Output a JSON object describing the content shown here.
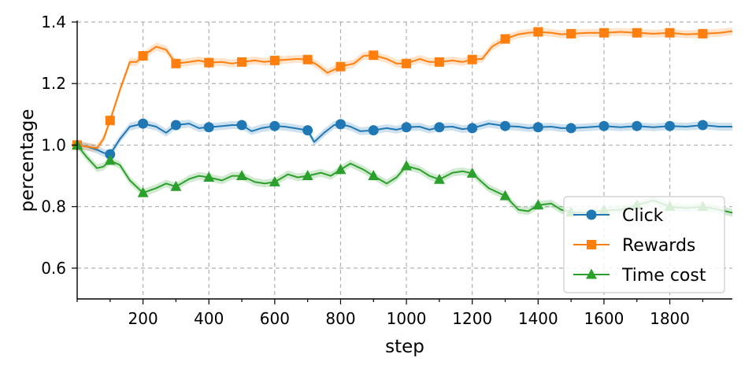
{
  "chart_data": {
    "type": "line",
    "xlabel": "step",
    "ylabel": "percentage",
    "xlim": [
      0,
      1990
    ],
    "ylim": [
      0.5,
      1.4
    ],
    "xticks": [
      200,
      400,
      600,
      800,
      1000,
      1200,
      1400,
      1600,
      1800
    ],
    "yticks": [
      0.6,
      0.8,
      1.0,
      1.2,
      1.4
    ],
    "grid": true,
    "legend_position": "lower-right",
    "series": [
      {
        "name": "Click",
        "color": "#1f77b4",
        "marker": "circle",
        "x": [
          0,
          100,
          200,
          300,
          400,
          500,
          600,
          700,
          800,
          900,
          1000,
          1100,
          1200,
          1300,
          1400,
          1500,
          1600,
          1700,
          1800,
          1900
        ],
        "y": [
          1.0,
          0.97,
          1.07,
          1.065,
          1.058,
          1.065,
          1.062,
          1.048,
          1.068,
          1.048,
          1.058,
          1.058,
          1.055,
          1.062,
          1.058,
          1.055,
          1.062,
          1.062,
          1.062,
          1.065
        ],
        "line_x": [
          0,
          30,
          60,
          80,
          100,
          130,
          160,
          200,
          240,
          270,
          300,
          340,
          370,
          400,
          440,
          470,
          500,
          530,
          560,
          600,
          630,
          660,
          700,
          720,
          750,
          780,
          800,
          830,
          860,
          900,
          940,
          970,
          1000,
          1040,
          1070,
          1100,
          1140,
          1170,
          1200,
          1250,
          1300,
          1340,
          1370,
          1400,
          1440,
          1470,
          1500,
          1550,
          1600,
          1650,
          1700,
          1750,
          1800,
          1850,
          1900,
          1950,
          1990
        ],
        "line_y": [
          1.0,
          0.995,
          0.985,
          0.975,
          0.97,
          1.02,
          1.06,
          1.07,
          1.06,
          1.04,
          1.065,
          1.07,
          1.055,
          1.058,
          1.062,
          1.065,
          1.065,
          1.045,
          1.055,
          1.062,
          1.06,
          1.055,
          1.048,
          1.01,
          1.04,
          1.065,
          1.068,
          1.06,
          1.045,
          1.048,
          1.055,
          1.05,
          1.058,
          1.06,
          1.05,
          1.058,
          1.06,
          1.052,
          1.055,
          1.07,
          1.062,
          1.06,
          1.055,
          1.058,
          1.06,
          1.055,
          1.055,
          1.058,
          1.062,
          1.058,
          1.062,
          1.058,
          1.062,
          1.06,
          1.065,
          1.06,
          1.06
        ]
      },
      {
        "name": "Rewards",
        "color": "#ff7f0e",
        "marker": "square",
        "x": [
          0,
          100,
          200,
          300,
          400,
          500,
          600,
          700,
          800,
          900,
          1000,
          1100,
          1200,
          1300,
          1400,
          1500,
          1600,
          1700,
          1800,
          1900
        ],
        "y": [
          1.0,
          1.08,
          1.29,
          1.265,
          1.268,
          1.27,
          1.275,
          1.278,
          1.255,
          1.292,
          1.265,
          1.27,
          1.278,
          1.345,
          1.368,
          1.362,
          1.365,
          1.365,
          1.365,
          1.362
        ],
        "line_x": [
          0,
          30,
          60,
          80,
          100,
          130,
          160,
          180,
          200,
          240,
          270,
          300,
          340,
          370,
          400,
          440,
          470,
          500,
          540,
          570,
          600,
          640,
          670,
          700,
          730,
          760,
          800,
          840,
          870,
          900,
          940,
          970,
          1000,
          1040,
          1070,
          1100,
          1140,
          1170,
          1200,
          1230,
          1260,
          1300,
          1340,
          1370,
          1400,
          1440,
          1470,
          1500,
          1550,
          1600,
          1650,
          1700,
          1750,
          1800,
          1850,
          1900,
          1950,
          1990
        ],
        "line_y": [
          1.0,
          0.995,
          0.99,
          1.02,
          1.08,
          1.18,
          1.27,
          1.27,
          1.29,
          1.32,
          1.31,
          1.265,
          1.27,
          1.275,
          1.268,
          1.27,
          1.265,
          1.27,
          1.275,
          1.27,
          1.275,
          1.278,
          1.28,
          1.278,
          1.26,
          1.235,
          1.255,
          1.265,
          1.29,
          1.292,
          1.28,
          1.265,
          1.265,
          1.28,
          1.27,
          1.27,
          1.275,
          1.27,
          1.278,
          1.28,
          1.32,
          1.345,
          1.36,
          1.365,
          1.368,
          1.365,
          1.36,
          1.362,
          1.365,
          1.365,
          1.368,
          1.365,
          1.362,
          1.365,
          1.36,
          1.362,
          1.365,
          1.37
        ]
      },
      {
        "name": "Time cost",
        "color": "#2ca02c",
        "marker": "triangle",
        "x": [
          0,
          100,
          200,
          300,
          400,
          500,
          600,
          700,
          800,
          900,
          1000,
          1100,
          1200,
          1300,
          1400,
          1500,
          1600,
          1700,
          1800,
          1900
        ],
        "y": [
          1.0,
          0.95,
          0.845,
          0.865,
          0.895,
          0.9,
          0.88,
          0.9,
          0.92,
          0.9,
          0.932,
          0.888,
          0.908,
          0.835,
          0.805,
          0.782,
          0.788,
          0.805,
          0.8,
          0.8
        ],
        "line_x": [
          0,
          30,
          60,
          80,
          100,
          130,
          160,
          200,
          240,
          270,
          300,
          340,
          370,
          400,
          440,
          470,
          500,
          540,
          570,
          600,
          640,
          670,
          700,
          740,
          770,
          800,
          830,
          870,
          900,
          940,
          970,
          1000,
          1040,
          1070,
          1100,
          1140,
          1170,
          1200,
          1250,
          1300,
          1340,
          1370,
          1400,
          1440,
          1470,
          1500,
          1550,
          1600,
          1650,
          1700,
          1750,
          1800,
          1850,
          1900,
          1950,
          1990
        ],
        "line_y": [
          1.0,
          0.96,
          0.925,
          0.93,
          0.95,
          0.935,
          0.885,
          0.845,
          0.86,
          0.875,
          0.865,
          0.89,
          0.9,
          0.895,
          0.885,
          0.9,
          0.9,
          0.88,
          0.875,
          0.88,
          0.905,
          0.895,
          0.9,
          0.91,
          0.9,
          0.92,
          0.94,
          0.92,
          0.9,
          0.875,
          0.895,
          0.932,
          0.92,
          0.9,
          0.888,
          0.91,
          0.915,
          0.908,
          0.86,
          0.835,
          0.79,
          0.785,
          0.805,
          0.81,
          0.79,
          0.782,
          0.78,
          0.788,
          0.79,
          0.805,
          0.82,
          0.8,
          0.795,
          0.8,
          0.79,
          0.78
        ]
      }
    ]
  }
}
